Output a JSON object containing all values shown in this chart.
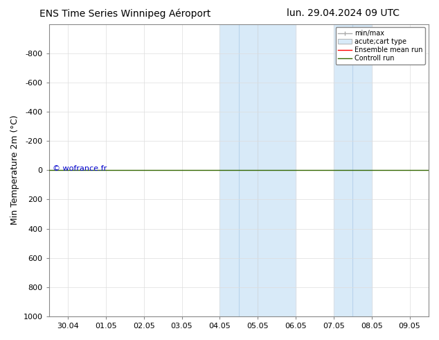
{
  "title_left": "ENS Time Series Winnipeg Aéroport",
  "title_right": "lun. 29.04.2024 09 UTC",
  "ylabel": "Min Temperature 2m (°C)",
  "xlim_dates": [
    "30.04",
    "01.05",
    "02.05",
    "03.05",
    "04.05",
    "05.05",
    "06.05",
    "07.05",
    "08.05",
    "09.05"
  ],
  "xlim": [
    -0.5,
    9.5
  ],
  "ylim": [
    1000,
    -1000
  ],
  "yticks": [
    -800,
    -600,
    -400,
    -200,
    0,
    200,
    400,
    600,
    800,
    1000
  ],
  "bg_color": "#ffffff",
  "plot_bg_color": "#ffffff",
  "shaded_blocks": [
    {
      "xmin": 4.0,
      "xmax": 4.5
    },
    {
      "xmin": 4.5,
      "xmax": 5.0
    },
    {
      "xmin": 5.0,
      "xmax": 6.0
    },
    {
      "xmin": 7.0,
      "xmax": 7.5
    },
    {
      "xmin": 7.5,
      "xmax": 8.0
    }
  ],
  "shaded_color": "#d8eaf8",
  "divider_lines": [
    4.5,
    5.0,
    7.5
  ],
  "divider_color": "#b8d4ec",
  "horizontal_line_y": 0,
  "horizontal_line_color": "#336600",
  "watermark": "© wofrance.fr",
  "watermark_color": "#0000cc",
  "tick_label_fontsize": 8,
  "axis_label_fontsize": 9,
  "title_fontsize": 10,
  "grid_color": "#dddddd",
  "spine_color": "#888888"
}
